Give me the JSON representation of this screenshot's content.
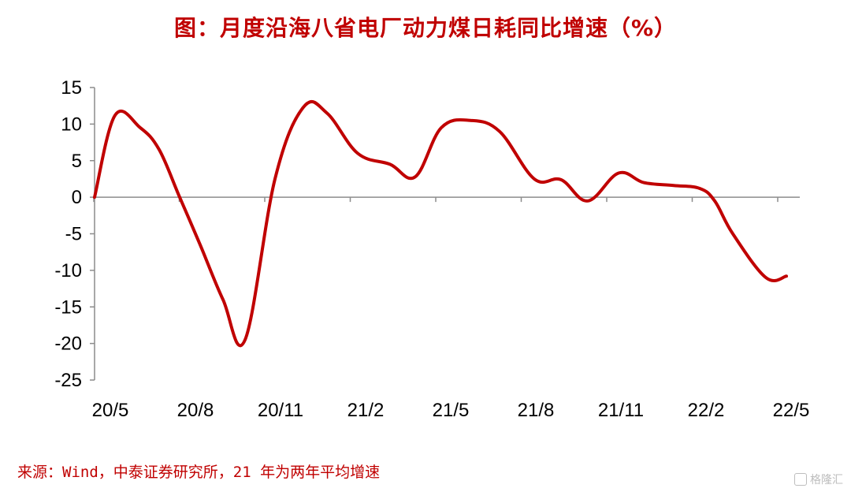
{
  "title": "图：月度沿海八省电厂动力煤日耗同比增速（%）",
  "source": "来源：Wind，中泰证券研究所，21 年为两年平均增速",
  "watermark": "格隆汇",
  "colors": {
    "line": "#C00000",
    "title": "#C00000",
    "axis": "#8C8C8C"
  },
  "chart_data": {
    "type": "line",
    "title": "图：月度沿海八省电厂动力煤日耗同比增速（%）",
    "xlabel": "",
    "ylabel": "",
    "ylim": [
      -25,
      15
    ],
    "yticks": [
      15,
      10,
      5,
      0,
      -5,
      -10,
      -15,
      -20,
      -25
    ],
    "xticks": [
      "20/5",
      "20/8",
      "20/11",
      "21/2",
      "21/5",
      "21/8",
      "21/11",
      "22/2",
      "22/5"
    ],
    "grid": false,
    "legend": "none",
    "series": [
      {
        "values": [
          {
            "x": "20/4 上旬",
            "y": 0.0
          },
          {
            "x": "20/4 下旬",
            "y": 11.2
          },
          {
            "x": "20/5",
            "y": 9.5
          },
          {
            "x": "20/6",
            "y": 6.5
          },
          {
            "x": "20/7",
            "y": 0.0
          },
          {
            "x": "20/8",
            "y": -6.5
          },
          {
            "x": "20/9",
            "y": -14.0
          },
          {
            "x": "20/10",
            "y": -19.5
          },
          {
            "x": "20/11",
            "y": 2.5
          },
          {
            "x": "20/12 上旬",
            "y": 12.3
          },
          {
            "x": "20/12 下旬",
            "y": 11.5
          },
          {
            "x": "21/1",
            "y": 6.0
          },
          {
            "x": "21/2",
            "y": 4.5
          },
          {
            "x": "21/3",
            "y": 2.8
          },
          {
            "x": "21/4",
            "y": 9.5
          },
          {
            "x": "21/5",
            "y": 10.5
          },
          {
            "x": "21/6",
            "y": 9.0
          },
          {
            "x": "21/7",
            "y": 2.5
          },
          {
            "x": "21/8",
            "y": 2.4
          },
          {
            "x": "21/9",
            "y": -0.5
          },
          {
            "x": "21/10",
            "y": 3.3
          },
          {
            "x": "21/11",
            "y": 2.0
          },
          {
            "x": "21/12",
            "y": 1.6
          },
          {
            "x": "22/1",
            "y": 1.2
          },
          {
            "x": "22/2",
            "y": -0.5
          },
          {
            "x": "22/3",
            "y": -5.0
          },
          {
            "x": "22/4",
            "y": -11.0
          },
          {
            "x": "22/5",
            "y": -10.8
          }
        ]
      }
    ]
  }
}
